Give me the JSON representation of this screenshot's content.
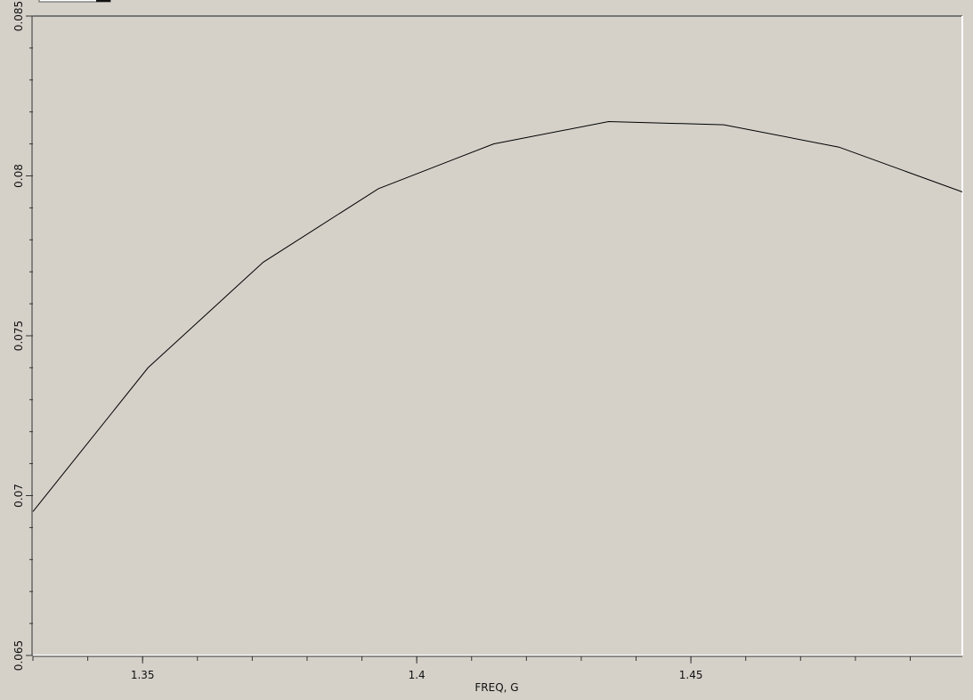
{
  "chart_data": {
    "type": "line",
    "title": "",
    "xlabel": "FREQ, G",
    "ylabel": "",
    "xlim": [
      1.33,
      1.4995
    ],
    "ylim": [
      0.065,
      0.085
    ],
    "x_ticks": [
      {
        "value": 1.35,
        "label": "1.35"
      },
      {
        "value": 1.4,
        "label": "1.4"
      },
      {
        "value": 1.45,
        "label": "1.45"
      }
    ],
    "y_ticks": [
      {
        "value": 0.065,
        "label": "0.065"
      },
      {
        "value": 0.07,
        "label": "0.07"
      },
      {
        "value": 0.075,
        "label": "0.075"
      },
      {
        "value": 0.08,
        "label": "0.08"
      },
      {
        "value": 0.085,
        "label": "0.085"
      }
    ],
    "x_minor_step": 0.01,
    "y_minor_step": 0.001,
    "grid": false,
    "series": [
      {
        "color": "#000000",
        "x": [
          1.33,
          1.351,
          1.372,
          1.393,
          1.414,
          1.435,
          1.456,
          1.477,
          1.4995
        ],
        "y": [
          0.0695,
          0.074,
          0.0773,
          0.0796,
          0.081,
          0.0817,
          0.0816,
          0.0809,
          0.0795
        ]
      }
    ]
  }
}
